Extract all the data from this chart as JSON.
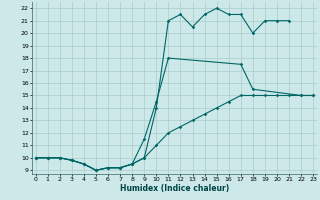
{
  "xlabel": "Humidex (Indice chaleur)",
  "bg_color": "#cce8e8",
  "grid_color": "#aacccc",
  "line_color": "#006666",
  "xlim": [
    -0.3,
    23.3
  ],
  "ylim": [
    8.7,
    22.5
  ],
  "xticks": [
    0,
    1,
    2,
    3,
    4,
    5,
    6,
    7,
    8,
    9,
    10,
    11,
    12,
    13,
    14,
    15,
    16,
    17,
    18,
    19,
    20,
    21,
    22,
    23
  ],
  "yticks": [
    9,
    10,
    11,
    12,
    13,
    14,
    15,
    16,
    17,
    18,
    19,
    20,
    21,
    22
  ],
  "series1_x": [
    0,
    1,
    2,
    3,
    4,
    5,
    6,
    7,
    8,
    9,
    10,
    11,
    12,
    13,
    14,
    15,
    16,
    17,
    18,
    19,
    20,
    21
  ],
  "series1_y": [
    10,
    10,
    10,
    9.8,
    9.5,
    9.0,
    9.2,
    9.2,
    9.5,
    10.0,
    14.0,
    21.0,
    21.5,
    20.5,
    21.5,
    22.0,
    21.5,
    21.5,
    20.0,
    21.0,
    21.0,
    21.0
  ],
  "series2_x": [
    0,
    1,
    2,
    3,
    4,
    5,
    6,
    7,
    8,
    9,
    10,
    11,
    17,
    18,
    22,
    23
  ],
  "series2_y": [
    10,
    10,
    10,
    9.8,
    9.5,
    9.0,
    9.2,
    9.2,
    9.5,
    11.5,
    14.5,
    18.0,
    17.5,
    15.5,
    15.0,
    15.0
  ],
  "series3_x": [
    0,
    1,
    2,
    3,
    4,
    5,
    6,
    7,
    8,
    9,
    10,
    11,
    12,
    13,
    14,
    15,
    16,
    17,
    18,
    19,
    20,
    21,
    22,
    23
  ],
  "series3_y": [
    10,
    10,
    10,
    9.8,
    9.5,
    9.0,
    9.2,
    9.2,
    9.5,
    10.0,
    11.0,
    12.0,
    12.5,
    13.0,
    13.5,
    14.0,
    14.5,
    15.0,
    15.0,
    15.0,
    15.0,
    15.0,
    15.0,
    15.0
  ]
}
